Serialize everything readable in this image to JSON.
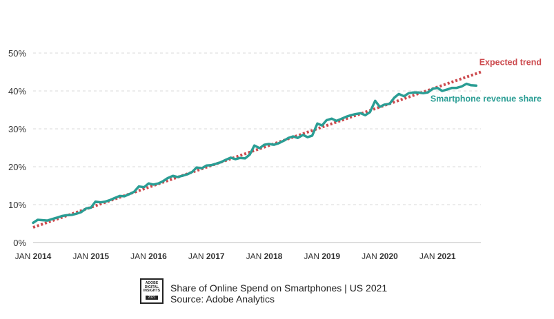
{
  "chart_data": {
    "type": "line",
    "y_ticks": [
      "0%",
      "10%",
      "20%",
      "30%",
      "40%",
      "50%"
    ],
    "y_tick_values": [
      0,
      10,
      20,
      30,
      40,
      50
    ],
    "ylim": [
      0,
      50
    ],
    "x_ticks": [
      {
        "prefix": "JAN",
        "year": "2014",
        "value": 2014
      },
      {
        "prefix": "JAN",
        "year": "2015",
        "value": 2015
      },
      {
        "prefix": "JAN",
        "year": "2016",
        "value": 2016
      },
      {
        "prefix": "JAN",
        "year": "2017",
        "value": 2017
      },
      {
        "prefix": "JAN",
        "year": "2018",
        "value": 2018
      },
      {
        "prefix": "JAN",
        "year": "2019",
        "value": 2019
      },
      {
        "prefix": "JAN",
        "year": "2020",
        "value": 2020
      },
      {
        "prefix": "JAN",
        "year": "2021",
        "value": 2021
      }
    ],
    "xlim": [
      2014,
      2021.75
    ],
    "grid": true,
    "series": [
      {
        "name": "Smartphone revenue share",
        "color": "#2a9d94",
        "style": "solid",
        "x": [
          2014.0,
          2014.08,
          2014.17,
          2014.25,
          2014.33,
          2014.42,
          2014.5,
          2014.58,
          2014.67,
          2014.75,
          2014.83,
          2014.92,
          2015.0,
          2015.08,
          2015.17,
          2015.25,
          2015.33,
          2015.42,
          2015.5,
          2015.58,
          2015.67,
          2015.75,
          2015.83,
          2015.92,
          2016.0,
          2016.08,
          2016.17,
          2016.25,
          2016.33,
          2016.42,
          2016.5,
          2016.58,
          2016.67,
          2016.75,
          2016.83,
          2016.92,
          2017.0,
          2017.08,
          2017.17,
          2017.25,
          2017.33,
          2017.42,
          2017.5,
          2017.58,
          2017.67,
          2017.75,
          2017.83,
          2017.92,
          2018.0,
          2018.08,
          2018.17,
          2018.25,
          2018.33,
          2018.42,
          2018.5,
          2018.58,
          2018.67,
          2018.75,
          2018.83,
          2018.92,
          2019.0,
          2019.08,
          2019.17,
          2019.25,
          2019.33,
          2019.42,
          2019.5,
          2019.58,
          2019.67,
          2019.75,
          2019.83,
          2019.92,
          2020.0,
          2020.08,
          2020.17,
          2020.25,
          2020.33,
          2020.42,
          2020.5,
          2020.58,
          2020.67,
          2020.75,
          2020.83,
          2020.92,
          2021.0,
          2021.08,
          2021.17,
          2021.25,
          2021.33,
          2021.42,
          2021.5,
          2021.58,
          2021.67
        ],
        "values": [
          5.2,
          6.0,
          5.9,
          5.8,
          6.2,
          6.6,
          7.0,
          7.2,
          7.3,
          7.6,
          8.0,
          9.0,
          9.2,
          10.8,
          10.6,
          10.8,
          11.2,
          11.8,
          12.3,
          12.2,
          12.8,
          13.4,
          14.8,
          14.6,
          15.6,
          15.3,
          15.6,
          16.2,
          17.0,
          17.6,
          17.3,
          17.6,
          18.0,
          18.6,
          19.8,
          19.6,
          20.3,
          20.4,
          20.8,
          21.2,
          21.8,
          22.4,
          22.0,
          22.3,
          22.2,
          23.2,
          25.6,
          24.9,
          25.8,
          26.0,
          25.8,
          26.2,
          26.8,
          27.6,
          28.0,
          27.6,
          28.4,
          27.8,
          28.2,
          31.4,
          30.9,
          32.3,
          32.7,
          32.1,
          32.6,
          33.2,
          33.6,
          33.9,
          34.1,
          33.6,
          34.4,
          37.4,
          35.8,
          36.4,
          36.6,
          38.2,
          39.2,
          38.6,
          39.4,
          39.6,
          39.6,
          39.4,
          39.6,
          40.6,
          40.8,
          40.0,
          40.4,
          40.8,
          40.8,
          41.2,
          41.9,
          41.5,
          41.4
        ]
      },
      {
        "name": "Expected trend",
        "color": "#cc4a4e",
        "style": "dotted",
        "x": [
          2014.0,
          2021.75
        ],
        "values": [
          4.0,
          45.0
        ]
      }
    ]
  },
  "footer": {
    "badge_text": "ADOBE\nDIGITAL\nINSIGHTS",
    "badge_year": "2021",
    "title": "Share of Online Spend on Smartphones | US 2021",
    "source": "Source: Adobe Analytics"
  }
}
